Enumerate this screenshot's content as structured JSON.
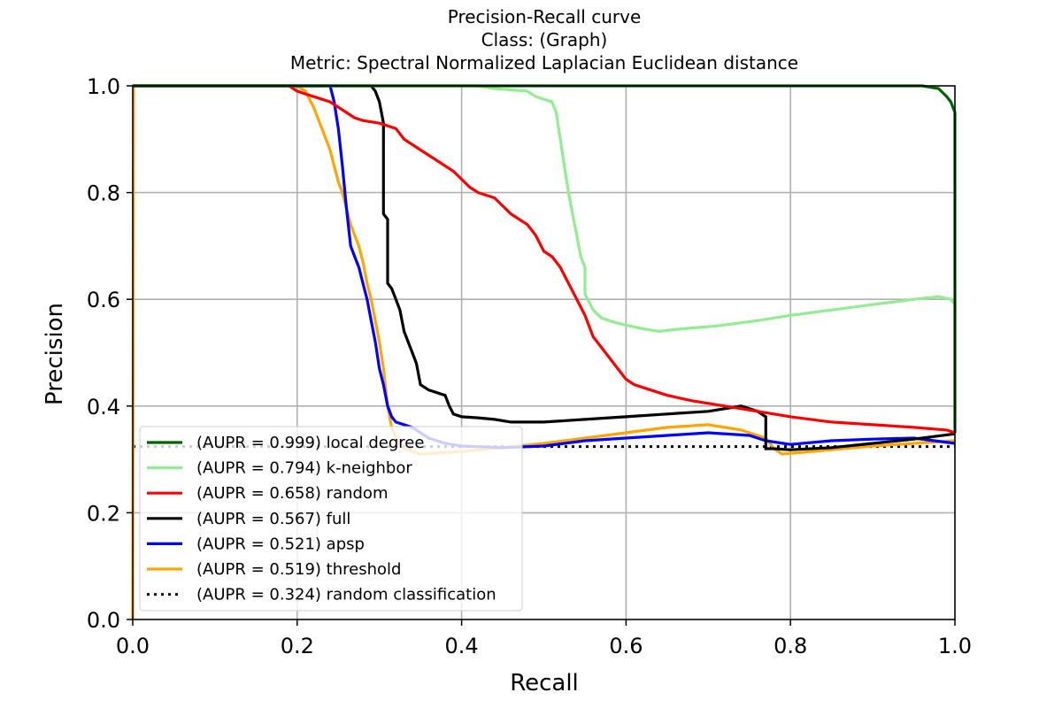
{
  "chart_data": {
    "type": "line",
    "title_lines": [
      "Precision-Recall curve",
      "Class: (Graph)",
      "Metric: Spectral Normalized Laplacian Euclidean distance"
    ],
    "xlabel": "Recall",
    "ylabel": "Precision",
    "xlim": [
      0.0,
      1.0
    ],
    "ylim": [
      0.0,
      1.0
    ],
    "xticks": [
      "0.0",
      "0.2",
      "0.4",
      "0.6",
      "0.8",
      "1.0"
    ],
    "yticks": [
      "0.0",
      "0.2",
      "0.4",
      "0.6",
      "0.8",
      "1.0"
    ],
    "grid": true,
    "legend_position": "lower-left",
    "series": [
      {
        "name": "(AUPR = 0.999) local degree",
        "color": "#006400",
        "style": "solid",
        "points": [
          [
            0.0,
            1.0
          ],
          [
            0.96,
            1.0
          ],
          [
            0.98,
            0.995
          ],
          [
            0.99,
            0.98
          ],
          [
            0.995,
            0.97
          ],
          [
            1.0,
            0.95
          ],
          [
            1.0,
            0.35
          ]
        ]
      },
      {
        "name": "(AUPR = 0.794) k-neighbor",
        "color": "#90ee90",
        "style": "solid",
        "points": [
          [
            0.0,
            1.0
          ],
          [
            0.42,
            1.0
          ],
          [
            0.44,
            0.995
          ],
          [
            0.48,
            0.99
          ],
          [
            0.49,
            0.98
          ],
          [
            0.5,
            0.975
          ],
          [
            0.51,
            0.97
          ],
          [
            0.515,
            0.95
          ],
          [
            0.52,
            0.9
          ],
          [
            0.525,
            0.85
          ],
          [
            0.53,
            0.8
          ],
          [
            0.535,
            0.76
          ],
          [
            0.54,
            0.72
          ],
          [
            0.545,
            0.68
          ],
          [
            0.55,
            0.66
          ],
          [
            0.55,
            0.61
          ],
          [
            0.56,
            0.58
          ],
          [
            0.57,
            0.565
          ],
          [
            0.59,
            0.555
          ],
          [
            0.62,
            0.545
          ],
          [
            0.64,
            0.54
          ],
          [
            0.67,
            0.545
          ],
          [
            0.71,
            0.55
          ],
          [
            0.76,
            0.56
          ],
          [
            0.8,
            0.57
          ],
          [
            0.85,
            0.58
          ],
          [
            0.9,
            0.59
          ],
          [
            0.95,
            0.6
          ],
          [
            0.98,
            0.605
          ],
          [
            0.995,
            0.6
          ],
          [
            1.0,
            0.59
          ],
          [
            1.0,
            0.35
          ]
        ]
      },
      {
        "name": "(AUPR = 0.658) random",
        "color": "#ff0000",
        "style": "solid",
        "points": [
          [
            0.0,
            1.0
          ],
          [
            0.19,
            1.0
          ],
          [
            0.2,
            0.99
          ],
          [
            0.22,
            0.98
          ],
          [
            0.24,
            0.97
          ],
          [
            0.26,
            0.95
          ],
          [
            0.27,
            0.94
          ],
          [
            0.28,
            0.935
          ],
          [
            0.3,
            0.93
          ],
          [
            0.32,
            0.92
          ],
          [
            0.33,
            0.9
          ],
          [
            0.35,
            0.88
          ],
          [
            0.37,
            0.86
          ],
          [
            0.39,
            0.84
          ],
          [
            0.41,
            0.81
          ],
          [
            0.42,
            0.8
          ],
          [
            0.44,
            0.79
          ],
          [
            0.46,
            0.76
          ],
          [
            0.48,
            0.74
          ],
          [
            0.49,
            0.72
          ],
          [
            0.5,
            0.69
          ],
          [
            0.51,
            0.68
          ],
          [
            0.52,
            0.66
          ],
          [
            0.53,
            0.63
          ],
          [
            0.54,
            0.6
          ],
          [
            0.55,
            0.57
          ],
          [
            0.56,
            0.53
          ],
          [
            0.57,
            0.51
          ],
          [
            0.58,
            0.49
          ],
          [
            0.59,
            0.47
          ],
          [
            0.6,
            0.45
          ],
          [
            0.61,
            0.44
          ],
          [
            0.63,
            0.43
          ],
          [
            0.65,
            0.42
          ],
          [
            0.68,
            0.41
          ],
          [
            0.72,
            0.4
          ],
          [
            0.76,
            0.39
          ],
          [
            0.8,
            0.38
          ],
          [
            0.85,
            0.37
          ],
          [
            0.9,
            0.365
          ],
          [
            0.95,
            0.36
          ],
          [
            0.99,
            0.355
          ],
          [
            1.0,
            0.35
          ]
        ]
      },
      {
        "name": "(AUPR = 0.567) full",
        "color": "#000000",
        "style": "solid",
        "points": [
          [
            0.0,
            1.0
          ],
          [
            0.29,
            1.0
          ],
          [
            0.295,
            0.99
          ],
          [
            0.3,
            0.97
          ],
          [
            0.305,
            0.93
          ],
          [
            0.305,
            0.76
          ],
          [
            0.31,
            0.75
          ],
          [
            0.31,
            0.63
          ],
          [
            0.315,
            0.62
          ],
          [
            0.32,
            0.6
          ],
          [
            0.325,
            0.58
          ],
          [
            0.33,
            0.54
          ],
          [
            0.335,
            0.52
          ],
          [
            0.34,
            0.5
          ],
          [
            0.345,
            0.48
          ],
          [
            0.35,
            0.44
          ],
          [
            0.36,
            0.43
          ],
          [
            0.37,
            0.425
          ],
          [
            0.38,
            0.42
          ],
          [
            0.385,
            0.4
          ],
          [
            0.39,
            0.385
          ],
          [
            0.4,
            0.38
          ],
          [
            0.42,
            0.378
          ],
          [
            0.44,
            0.375
          ],
          [
            0.46,
            0.37
          ],
          [
            0.5,
            0.37
          ],
          [
            0.55,
            0.375
          ],
          [
            0.6,
            0.38
          ],
          [
            0.65,
            0.385
          ],
          [
            0.7,
            0.39
          ],
          [
            0.74,
            0.4
          ],
          [
            0.75,
            0.395
          ],
          [
            0.76,
            0.39
          ],
          [
            0.77,
            0.38
          ],
          [
            0.77,
            0.32
          ],
          [
            0.78,
            0.32
          ],
          [
            0.8,
            0.318
          ],
          [
            0.85,
            0.322
          ],
          [
            0.9,
            0.33
          ],
          [
            0.95,
            0.338
          ],
          [
            1.0,
            0.348
          ]
        ]
      },
      {
        "name": "(AUPR = 0.521) apsp",
        "color": "#0000ff",
        "style": "solid",
        "points": [
          [
            0.0,
            1.0
          ],
          [
            0.24,
            1.0
          ],
          [
            0.245,
            0.97
          ],
          [
            0.25,
            0.92
          ],
          [
            0.255,
            0.85
          ],
          [
            0.26,
            0.77
          ],
          [
            0.265,
            0.7
          ],
          [
            0.27,
            0.68
          ],
          [
            0.275,
            0.66
          ],
          [
            0.28,
            0.63
          ],
          [
            0.285,
            0.6
          ],
          [
            0.29,
            0.56
          ],
          [
            0.295,
            0.52
          ],
          [
            0.3,
            0.47
          ],
          [
            0.305,
            0.44
          ],
          [
            0.31,
            0.4
          ],
          [
            0.315,
            0.38
          ],
          [
            0.32,
            0.37
          ],
          [
            0.33,
            0.365
          ],
          [
            0.34,
            0.36
          ],
          [
            0.35,
            0.35
          ],
          [
            0.36,
            0.34
          ],
          [
            0.38,
            0.33
          ],
          [
            0.4,
            0.325
          ],
          [
            0.45,
            0.322
          ],
          [
            0.5,
            0.325
          ],
          [
            0.55,
            0.335
          ],
          [
            0.6,
            0.34
          ],
          [
            0.65,
            0.345
          ],
          [
            0.7,
            0.35
          ],
          [
            0.75,
            0.345
          ],
          [
            0.77,
            0.335
          ],
          [
            0.8,
            0.328
          ],
          [
            0.85,
            0.335
          ],
          [
            0.9,
            0.338
          ],
          [
            0.95,
            0.34
          ],
          [
            1.0,
            0.33
          ]
        ]
      },
      {
        "name": "(AUPR = 0.519) threshold",
        "color": "#ffa500",
        "style": "solid",
        "points": [
          [
            0.0,
            0.0
          ],
          [
            0.001,
            1.0
          ],
          [
            0.2,
            1.0
          ],
          [
            0.21,
            0.99
          ],
          [
            0.22,
            0.96
          ],
          [
            0.23,
            0.92
          ],
          [
            0.24,
            0.88
          ],
          [
            0.245,
            0.85
          ],
          [
            0.25,
            0.82
          ],
          [
            0.255,
            0.8
          ],
          [
            0.26,
            0.77
          ],
          [
            0.265,
            0.74
          ],
          [
            0.27,
            0.72
          ],
          [
            0.275,
            0.7
          ],
          [
            0.28,
            0.67
          ],
          [
            0.285,
            0.63
          ],
          [
            0.29,
            0.6
          ],
          [
            0.295,
            0.56
          ],
          [
            0.3,
            0.52
          ],
          [
            0.305,
            0.47
          ],
          [
            0.31,
            0.4
          ],
          [
            0.315,
            0.36
          ],
          [
            0.32,
            0.34
          ],
          [
            0.33,
            0.32
          ],
          [
            0.35,
            0.31
          ],
          [
            0.4,
            0.315
          ],
          [
            0.45,
            0.322
          ],
          [
            0.5,
            0.33
          ],
          [
            0.55,
            0.34
          ],
          [
            0.6,
            0.35
          ],
          [
            0.65,
            0.36
          ],
          [
            0.7,
            0.365
          ],
          [
            0.74,
            0.355
          ],
          [
            0.76,
            0.345
          ],
          [
            0.77,
            0.34
          ],
          [
            0.78,
            0.32
          ],
          [
            0.79,
            0.31
          ],
          [
            0.85,
            0.318
          ],
          [
            0.9,
            0.325
          ],
          [
            0.95,
            0.33
          ],
          [
            1.0,
            0.335
          ]
        ]
      },
      {
        "name": "(AUPR = 0.324) random classification",
        "color": "#000000",
        "style": "dotted",
        "points": [
          [
            0.0,
            0.324
          ],
          [
            1.0,
            0.324
          ]
        ]
      }
    ]
  }
}
